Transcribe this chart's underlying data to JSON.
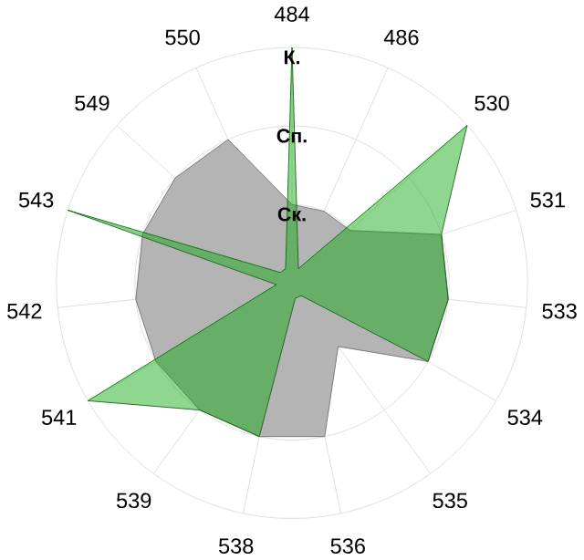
{
  "chart_data": {
    "type": "radar",
    "categories": [
      "484",
      "486",
      "530",
      "531",
      "533",
      "534",
      "535",
      "536",
      "538",
      "539",
      "541",
      "542",
      "543",
      "549",
      "550"
    ],
    "series": [
      {
        "color": "#b4b4b4",
        "values": [
          1,
          1,
          1,
          2,
          2,
          2,
          1,
          2,
          2,
          2,
          2,
          2,
          2,
          2,
          2
        ]
      },
      {
        "color": "#11a811",
        "values": [
          3,
          0.2,
          3,
          2,
          2,
          2,
          0.2,
          0.2,
          2,
          2,
          3,
          0.2,
          3,
          0.2,
          0.2
        ]
      }
    ],
    "ylim": [
      0,
      3
    ],
    "yticks": [
      {
        "value": 1,
        "label": "Ск."
      },
      {
        "value": 2,
        "label": "Сп."
      },
      {
        "value": 3,
        "label": "К."
      }
    ],
    "grid": true
  }
}
